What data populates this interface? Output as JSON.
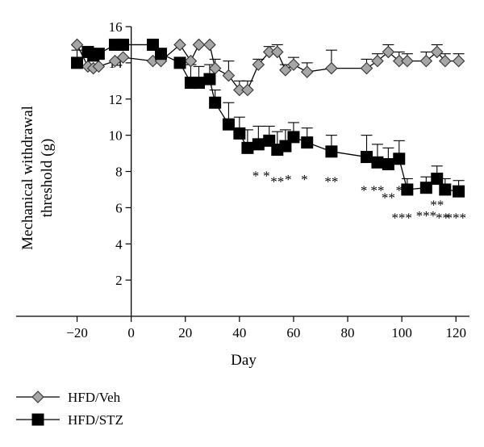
{
  "chart_data": {
    "type": "line",
    "xlabel": "Day",
    "ylabel": "Mechanical withdrawal threshold (g)",
    "xlim": [
      -30,
      125
    ],
    "ylim": [
      0,
      16
    ],
    "x_ticks": [
      -20,
      0,
      20,
      40,
      60,
      80,
      100,
      120
    ],
    "x_tick_labels": [
      "−20",
      "0",
      "20",
      "40",
      "60",
      "80",
      "100",
      "120"
    ],
    "y_ticks": [
      2,
      4,
      6,
      8,
      10,
      12,
      14,
      16
    ],
    "y_tick_labels": [
      "2",
      "4",
      "6",
      "8",
      "10",
      "12",
      "14",
      "16"
    ],
    "legend_position": "bottom-left",
    "series": [
      {
        "name": "HFD/Veh",
        "marker": "diamond",
        "color": "#a6a6a6",
        "x": [
          -20,
          -16,
          -14,
          -12,
          -6,
          -3,
          8,
          11,
          18,
          22,
          25,
          29,
          31,
          36,
          40,
          43,
          47,
          51,
          54,
          57,
          60,
          65,
          74,
          87,
          91,
          95,
          99,
          102,
          109,
          113,
          116,
          121
        ],
        "y": [
          15.0,
          13.8,
          13.7,
          13.8,
          14.1,
          14.3,
          14.1,
          14.1,
          15.0,
          14.1,
          15.0,
          15.0,
          13.7,
          13.3,
          12.5,
          12.5,
          13.9,
          14.6,
          14.6,
          13.6,
          13.9,
          13.5,
          13.7,
          13.7,
          14.1,
          14.6,
          14.1,
          14.1,
          14.1,
          14.6,
          14.1,
          14.1
        ],
        "err": [
          0,
          0,
          0,
          0,
          0,
          0,
          0,
          0,
          0,
          0,
          0,
          0,
          0.5,
          0.8,
          0.5,
          0.5,
          0.3,
          0.3,
          0.4,
          0.3,
          0.4,
          0.5,
          1.0,
          0.5,
          0.4,
          0.4,
          0.5,
          0.4,
          0.5,
          0.4,
          0.4,
          0.4
        ]
      },
      {
        "name": "HFD/STZ",
        "marker": "square",
        "color": "#000000",
        "x": [
          -20,
          -16,
          -14,
          -12,
          -6,
          -3,
          8,
          11,
          18,
          22,
          25,
          29,
          31,
          36,
          40,
          43,
          47,
          51,
          54,
          57,
          60,
          65,
          74,
          87,
          91,
          95,
          99,
          102,
          109,
          113,
          116,
          121
        ],
        "y": [
          14.0,
          14.6,
          14.4,
          14.5,
          15.0,
          15.0,
          15.0,
          14.5,
          14.0,
          12.9,
          12.9,
          13.1,
          11.8,
          10.6,
          10.1,
          9.3,
          9.5,
          9.7,
          9.2,
          9.4,
          9.9,
          9.6,
          9.1,
          8.8,
          8.5,
          8.4,
          8.7,
          7.0,
          7.1,
          7.6,
          7.0,
          6.9
        ],
        "err": [
          0.7,
          0,
          0,
          0,
          0,
          0,
          0,
          0,
          0,
          1.0,
          0.9,
          0.8,
          0.7,
          1.2,
          0.9,
          1.0,
          1.0,
          0.8,
          1.0,
          0.9,
          0.8,
          0.8,
          0.9,
          1.2,
          1.0,
          0.9,
          1.0,
          0.6,
          0.6,
          0.7,
          0.6,
          0.6
        ]
      }
    ],
    "significance": [
      {
        "x": 46,
        "y": 7.5,
        "text": "*"
      },
      {
        "x": 50,
        "y": 7.5,
        "text": "*"
      },
      {
        "x": 54,
        "y": 7.2,
        "text": "**"
      },
      {
        "x": 58,
        "y": 7.3,
        "text": "*"
      },
      {
        "x": 64,
        "y": 7.3,
        "text": "*"
      },
      {
        "x": 74,
        "y": 7.2,
        "text": "**"
      },
      {
        "x": 86,
        "y": 6.7,
        "text": "*"
      },
      {
        "x": 91,
        "y": 6.7,
        "text": "**"
      },
      {
        "x": 95,
        "y": 6.3,
        "text": "**"
      },
      {
        "x": 99,
        "y": 6.7,
        "text": "*"
      },
      {
        "x": 100,
        "y": 5.2,
        "text": "***"
      },
      {
        "x": 109,
        "y": 5.3,
        "text": "***"
      },
      {
        "x": 113,
        "y": 5.9,
        "text": "**"
      },
      {
        "x": 115,
        "y": 5.2,
        "text": "**"
      },
      {
        "x": 120,
        "y": 5.2,
        "text": "***"
      }
    ]
  }
}
